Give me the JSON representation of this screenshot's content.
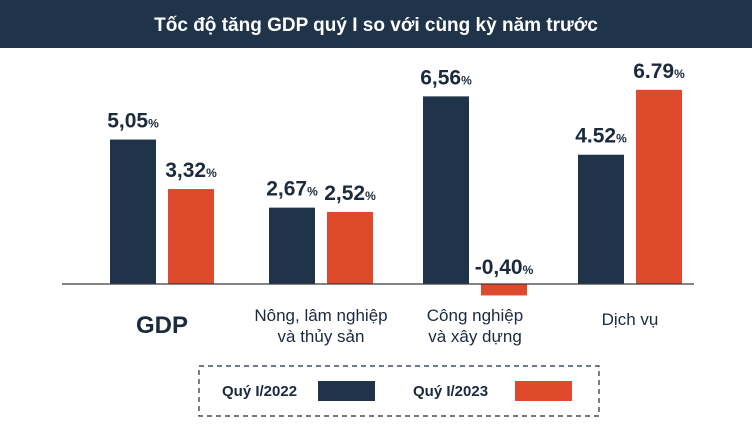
{
  "chart_data": {
    "type": "bar",
    "title": "Tốc độ tăng GDP quý I so với cùng kỳ năm trước",
    "categories": [
      [
        "GDP"
      ],
      [
        "Nông, lâm nghiệp",
        "và thủy sản"
      ],
      [
        "Công nghiệp",
        "và xây dựng"
      ],
      [
        "Dịch vụ"
      ]
    ],
    "series": [
      {
        "name": "Quý I/2022",
        "values": [
          5.05,
          2.67,
          6.56,
          4.52
        ],
        "labels": [
          "5,05",
          "2,67",
          "6,56",
          "4.52"
        ],
        "color": "#1f3349"
      },
      {
        "name": "Quý I/2023",
        "values": [
          3.32,
          2.52,
          -0.4,
          6.79
        ],
        "labels": [
          "3,32",
          "2,52",
          "-0,40",
          "6.79"
        ],
        "color": "#df4a2c"
      }
    ],
    "unit": "%",
    "legend_position": "bottom",
    "title_bg": "#1f3349"
  }
}
